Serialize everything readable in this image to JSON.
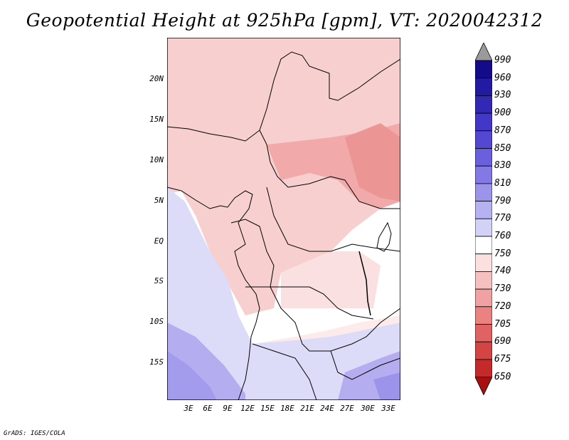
{
  "title": "Geopotential Height at 925hPa [gpm], VT: 2020042312",
  "credit": "GrADS: IGES/COLA",
  "map": {
    "lat_labels": [
      "20N",
      "15N",
      "10N",
      "5N",
      "EQ",
      "5S",
      "10S",
      "15S"
    ],
    "lon_labels": [
      "3E",
      "6E",
      "9E",
      "12E",
      "15E",
      "18E",
      "21E",
      "24E",
      "27E",
      "30E",
      "33E"
    ]
  },
  "colorbar": {
    "levels": [
      "990",
      "960",
      "930",
      "900",
      "870",
      "850",
      "830",
      "810",
      "790",
      "770",
      "760",
      "750",
      "740",
      "730",
      "720",
      "705",
      "690",
      "675",
      "650"
    ],
    "colors": [
      "#130b8a",
      "#231aa3",
      "#3328b6",
      "#4237c6",
      "#5447d3",
      "#6a5fdc",
      "#8378e4",
      "#9c94ea",
      "#b6b1f0",
      "#d3d1f6",
      "#ffffff",
      "#fce0e0",
      "#f7c0c0",
      "#f1a1a1",
      "#ea8282",
      "#e06262",
      "#d44444",
      "#c42a2a",
      "#a81010"
    ],
    "over_color": "#9a9a9a"
  }
}
